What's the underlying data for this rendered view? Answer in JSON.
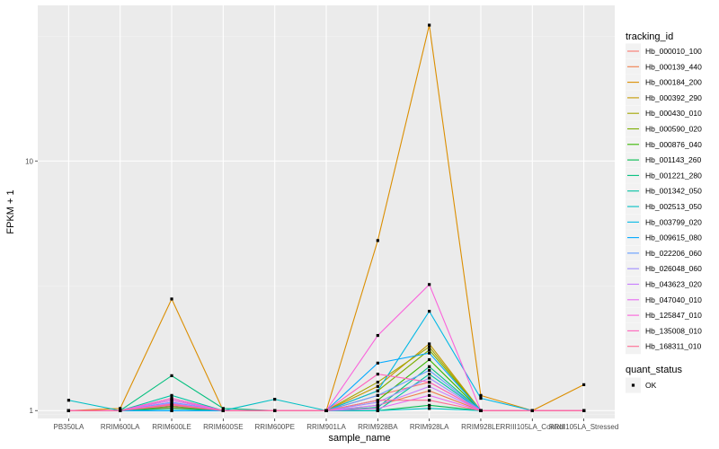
{
  "chart_data": {
    "type": "line",
    "xlabel": "sample_name",
    "ylabel": "FPKM + 1",
    "y_scale": "log10",
    "ylim": [
      0.93,
      42
    ],
    "y_ticks": [
      1,
      10
    ],
    "y_tick_labels": [
      "1",
      "10"
    ],
    "grid": true,
    "categories": [
      "PB350LA",
      "RRIM600LA",
      "RRIM600LE",
      "RRIM600SE",
      "RRIM600PE",
      "RRIM901LA",
      "RRIM928BA",
      "RRIM928LA",
      "RRIM928LE",
      "RRIII105LA_Control",
      "RRIII105LA_Stressed"
    ],
    "category_labels": [
      "PB350LA",
      "RRIM600LA",
      "RRIM600LE",
      "RRIM600SE",
      "RRIM600PE",
      "RRIM901LA",
      "RRIM928BA",
      "RRIM928LA",
      "RRIM928LE",
      "RRIII105LA_Control",
      "RRIII105LA_Stressed"
    ],
    "legend": {
      "title": "tracking_id",
      "position": "right"
    },
    "shape_legend": {
      "title": "quant_status",
      "entries": [
        "OK"
      ]
    },
    "series": [
      {
        "name": "Hb_000010_100",
        "color": "#F8766D",
        "values": [
          1.0,
          1.0,
          1.03,
          1.0,
          1.0,
          1.0,
          1.15,
          1.3,
          1.0,
          1.0,
          1.0
        ]
      },
      {
        "name": "Hb_000139_440",
        "color": "#F07E4D",
        "values": [
          1.0,
          1.0,
          1.05,
          1.0,
          1.0,
          1.0,
          1.05,
          1.2,
          1.0,
          1.0,
          1.0
        ]
      },
      {
        "name": "Hb_000184_200",
        "color": "#DB8E00",
        "values": [
          1.0,
          1.02,
          2.8,
          1.0,
          1.0,
          1.0,
          4.8,
          35.0,
          1.15,
          1.0,
          1.27
        ]
      },
      {
        "name": "Hb_000392_290",
        "color": "#C49A00",
        "values": [
          1.0,
          1.0,
          1.12,
          1.0,
          1.0,
          1.0,
          1.25,
          1.85,
          1.0,
          1.0,
          1.0
        ]
      },
      {
        "name": "Hb_000430_010",
        "color": "#A3A500",
        "values": [
          1.0,
          1.0,
          1.1,
          1.0,
          1.0,
          1.0,
          1.3,
          1.8,
          1.0,
          1.0,
          1.0
        ]
      },
      {
        "name": "Hb_000590_020",
        "color": "#7CAE00",
        "values": [
          1.0,
          1.0,
          1.06,
          1.0,
          1.0,
          1.0,
          1.2,
          1.75,
          1.0,
          1.0,
          1.0
        ]
      },
      {
        "name": "Hb_000876_040",
        "color": "#39B600",
        "values": [
          1.0,
          1.0,
          1.04,
          1.0,
          1.0,
          1.0,
          1.1,
          1.6,
          1.0,
          1.0,
          1.0
        ]
      },
      {
        "name": "Hb_001143_260",
        "color": "#00BB4E",
        "values": [
          1.0,
          1.0,
          1.02,
          1.0,
          1.0,
          1.0,
          1.0,
          1.05,
          1.0,
          1.0,
          1.0
        ]
      },
      {
        "name": "Hb_001221_280",
        "color": "#00BF7D",
        "values": [
          1.0,
          1.0,
          1.38,
          1.02,
          1.0,
          1.0,
          1.03,
          1.5,
          1.0,
          1.0,
          1.0
        ]
      },
      {
        "name": "Hb_001342_050",
        "color": "#00C1A3",
        "values": [
          1.0,
          1.0,
          1.15,
          1.0,
          1.0,
          1.0,
          1.0,
          1.4,
          1.0,
          1.0,
          1.0
        ]
      },
      {
        "name": "Hb_002513_050",
        "color": "#00BFC4",
        "values": [
          1.1,
          1.0,
          1.0,
          1.0,
          1.11,
          1.0,
          1.0,
          1.02,
          1.0,
          1.0,
          1.0
        ]
      },
      {
        "name": "Hb_003799_020",
        "color": "#00B8E5",
        "values": [
          1.0,
          1.0,
          1.0,
          1.0,
          1.0,
          1.0,
          1.2,
          2.5,
          1.12,
          1.0,
          1.0
        ]
      },
      {
        "name": "Hb_009615_080",
        "color": "#00A9FF",
        "values": [
          1.0,
          1.0,
          1.0,
          1.0,
          1.0,
          1.0,
          1.55,
          1.7,
          1.0,
          1.0,
          1.0
        ]
      },
      {
        "name": "Hb_022206_060",
        "color": "#619CFF",
        "values": [
          1.0,
          1.0,
          1.08,
          1.0,
          1.0,
          1.0,
          1.15,
          1.45,
          1.0,
          1.0,
          1.0
        ]
      },
      {
        "name": "Hb_026048_060",
        "color": "#9F8CFF",
        "values": [
          1.0,
          1.0,
          1.1,
          1.0,
          1.0,
          1.0,
          1.08,
          1.35,
          1.0,
          1.0,
          1.0
        ]
      },
      {
        "name": "Hb_043623_020",
        "color": "#C77CFF",
        "values": [
          1.0,
          1.0,
          1.07,
          1.0,
          1.0,
          1.0,
          1.05,
          1.25,
          1.0,
          1.0,
          1.0
        ]
      },
      {
        "name": "Hb_047040_010",
        "color": "#E76BF3",
        "values": [
          1.0,
          1.0,
          1.1,
          1.0,
          1.0,
          1.0,
          1.02,
          1.15,
          1.0,
          1.0,
          1.0
        ]
      },
      {
        "name": "Hb_125847_010",
        "color": "#FA62DB",
        "values": [
          1.0,
          1.0,
          1.12,
          1.0,
          1.0,
          1.0,
          2.0,
          3.2,
          1.0,
          1.0,
          1.0
        ]
      },
      {
        "name": "Hb_135008_010",
        "color": "#FF62BC",
        "values": [
          1.0,
          1.0,
          1.05,
          1.0,
          1.0,
          1.0,
          1.4,
          1.3,
          1.0,
          1.0,
          1.0
        ]
      },
      {
        "name": "Hb_168311_010",
        "color": "#FF6C91",
        "values": [
          1.0,
          1.0,
          1.06,
          1.0,
          1.0,
          1.0,
          1.1,
          1.1,
          1.0,
          1.0,
          1.0
        ]
      }
    ]
  }
}
